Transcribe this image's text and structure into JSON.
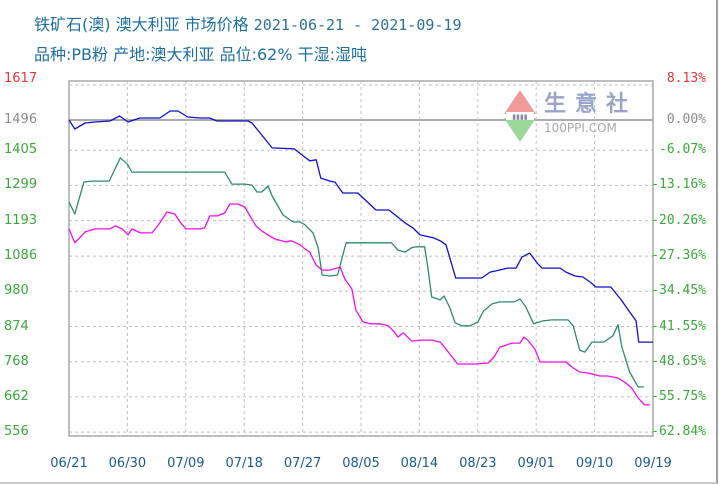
{
  "header": {
    "title_cn": "铁矿石(澳) 澳大利亚 市场价格",
    "date_range": "2021-06-21 - 2021-09-19",
    "subtitle": "品种:PB粉 产地:澳大利亚 品位:62% 干湿:湿吨"
  },
  "watermark": {
    "name": "生意社",
    "url": "100PPI.COM",
    "icon": "diamond-logo-icon"
  },
  "colors": {
    "title": "#1d6fa0",
    "left_top_tick": "#e8363b",
    "left_base_tick": "#8c8c8c",
    "left_other_ticks": "#3aa83a",
    "series_blue": "#1010c8",
    "series_green": "#2e8b6a",
    "series_magenta": "#ee10ee",
    "grid": "#c0c0c0",
    "base_line": "#909090",
    "x_ticks": "#1c5a8c"
  },
  "chart_data": {
    "type": "line",
    "title": "铁矿石(澳) 澳大利亚 市场价格 2021-06-21 - 2021-09-19",
    "subtitle": "品种:PB粉 产地:澳大利亚 品位:62% 干湿:湿吨",
    "xlabel": "",
    "ylabel": "",
    "x_ticks": [
      "06/21",
      "06/30",
      "07/09",
      "07/18",
      "07/27",
      "08/05",
      "08/14",
      "08/23",
      "09/01",
      "09/10",
      "09/19"
    ],
    "x_range_days": [
      0,
      90
    ],
    "y_left_ticks": [
      "1617",
      "1496",
      "1405",
      "1299",
      "1193",
      "1086",
      "980",
      "874",
      "768",
      "662",
      "556"
    ],
    "y_right_ticks": [
      "8.13%",
      "0.00%",
      "-6.07%",
      "-13.16%",
      "-20.26%",
      "-27.36%",
      "-34.45%",
      "-41.55%",
      "-48.65%",
      "-55.75%",
      "-62.84%"
    ],
    "ylim": [
      556,
      1617
    ],
    "base_value": 1496,
    "grid": true,
    "legend": "none",
    "series": [
      {
        "name": "blue",
        "color": "#1010c8",
        "points": [
          [
            0,
            1496
          ],
          [
            0.9,
            1469
          ],
          [
            2.5,
            1487
          ],
          [
            4,
            1490
          ],
          [
            6.3,
            1493
          ],
          [
            7.8,
            1508
          ],
          [
            9.1,
            1490
          ],
          [
            10.9,
            1502
          ],
          [
            14,
            1502
          ],
          [
            15.6,
            1523
          ],
          [
            16.8,
            1523
          ],
          [
            18.3,
            1505
          ],
          [
            20.2,
            1502
          ],
          [
            21.7,
            1502
          ],
          [
            22.8,
            1493
          ],
          [
            24,
            1493
          ],
          [
            25.6,
            1493
          ],
          [
            27.6,
            1493
          ],
          [
            28.2,
            1487
          ],
          [
            29.7,
            1451
          ],
          [
            31.3,
            1412
          ],
          [
            34.7,
            1409
          ],
          [
            36.1,
            1388
          ],
          [
            37.1,
            1373
          ],
          [
            38.1,
            1376
          ],
          [
            38.8,
            1321
          ],
          [
            40.2,
            1312
          ],
          [
            41,
            1309
          ],
          [
            42.2,
            1276
          ],
          [
            43.3,
            1276
          ],
          [
            44.5,
            1276
          ],
          [
            46,
            1249
          ],
          [
            47.3,
            1225
          ],
          [
            49.3,
            1225
          ],
          [
            51.8,
            1186
          ],
          [
            53,
            1171
          ],
          [
            54.1,
            1150
          ],
          [
            56.2,
            1141
          ],
          [
            57.2,
            1132
          ],
          [
            58.1,
            1120
          ],
          [
            59.6,
            1020
          ],
          [
            63.6,
            1020
          ],
          [
            64.9,
            1038
          ],
          [
            66.3,
            1044
          ],
          [
            67.6,
            1050
          ],
          [
            68.9,
            1050
          ],
          [
            69.8,
            1083
          ],
          [
            71,
            1095
          ],
          [
            72.3,
            1062
          ],
          [
            72.9,
            1050
          ],
          [
            75.7,
            1050
          ],
          [
            76.6,
            1038
          ],
          [
            78,
            1026
          ],
          [
            79.2,
            1023
          ],
          [
            80.3,
            1008
          ],
          [
            81.2,
            993
          ],
          [
            83.5,
            993
          ],
          [
            85.1,
            954
          ],
          [
            86.4,
            918
          ],
          [
            87.4,
            891
          ],
          [
            87.8,
            827
          ],
          [
            90,
            827
          ]
        ]
      },
      {
        "name": "green",
        "color": "#2e8b6a",
        "points": [
          [
            0,
            1249
          ],
          [
            0.9,
            1213
          ],
          [
            2.3,
            1309
          ],
          [
            3.4,
            1312
          ],
          [
            4.5,
            1312
          ],
          [
            6.2,
            1312
          ],
          [
            7.9,
            1382
          ],
          [
            9,
            1363
          ],
          [
            9.7,
            1339
          ],
          [
            11,
            1339
          ],
          [
            14,
            1339
          ],
          [
            17.1,
            1339
          ],
          [
            20.2,
            1339
          ],
          [
            23,
            1339
          ],
          [
            24,
            1339
          ],
          [
            25.1,
            1303
          ],
          [
            27.1,
            1303
          ],
          [
            28.2,
            1300
          ],
          [
            28.97,
            1279
          ],
          [
            29.7,
            1279
          ],
          [
            30.7,
            1297
          ],
          [
            31.3,
            1267
          ],
          [
            33,
            1210
          ],
          [
            34.5,
            1189
          ],
          [
            35.6,
            1189
          ],
          [
            36.4,
            1180
          ],
          [
            37.6,
            1156
          ],
          [
            38.4,
            1111
          ],
          [
            39,
            1029
          ],
          [
            40.2,
            1026
          ],
          [
            41.4,
            1029
          ],
          [
            42.7,
            1126
          ],
          [
            44.8,
            1126
          ],
          [
            47.6,
            1126
          ],
          [
            49.7,
            1126
          ],
          [
            50.7,
            1104
          ],
          [
            51.8,
            1098
          ],
          [
            52.8,
            1111
          ],
          [
            53.5,
            1114
          ],
          [
            54.8,
            1114
          ],
          [
            55.3,
            1053
          ],
          [
            55.9,
            963
          ],
          [
            57.2,
            954
          ],
          [
            57.8,
            966
          ],
          [
            58.7,
            930
          ],
          [
            59.5,
            885
          ],
          [
            60.6,
            876
          ],
          [
            61.8,
            876
          ],
          [
            63,
            888
          ],
          [
            63.9,
            921
          ],
          [
            65.2,
            942
          ],
          [
            66.4,
            948
          ],
          [
            68.6,
            948
          ],
          [
            69.5,
            957
          ],
          [
            70.4,
            933
          ],
          [
            71.6,
            882
          ],
          [
            73,
            891
          ],
          [
            74.4,
            894
          ],
          [
            76.9,
            894
          ],
          [
            77.7,
            876
          ],
          [
            78.7,
            803
          ],
          [
            79.5,
            797
          ],
          [
            80.6,
            827
          ],
          [
            82.4,
            827
          ],
          [
            83.8,
            846
          ],
          [
            84.6,
            879
          ],
          [
            85.2,
            812
          ],
          [
            86.4,
            737
          ],
          [
            87.7,
            692
          ],
          [
            88.6,
            692
          ]
        ]
      },
      {
        "name": "magenta",
        "color": "#ee10ee",
        "points": [
          [
            0,
            1168
          ],
          [
            0.9,
            1126
          ],
          [
            2.5,
            1159
          ],
          [
            4,
            1168
          ],
          [
            6.3,
            1168
          ],
          [
            7.1,
            1177
          ],
          [
            8.2,
            1168
          ],
          [
            9.1,
            1150
          ],
          [
            9.7,
            1168
          ],
          [
            11,
            1156
          ],
          [
            12.8,
            1156
          ],
          [
            14,
            1186
          ],
          [
            15.1,
            1219
          ],
          [
            16.3,
            1213
          ],
          [
            17.1,
            1189
          ],
          [
            18,
            1168
          ],
          [
            20.2,
            1168
          ],
          [
            20.9,
            1171
          ],
          [
            21.7,
            1207
          ],
          [
            22.9,
            1207
          ],
          [
            24,
            1216
          ],
          [
            24.8,
            1243
          ],
          [
            26,
            1243
          ],
          [
            27.1,
            1234
          ],
          [
            28.8,
            1177
          ],
          [
            29.7,
            1162
          ],
          [
            31.7,
            1138
          ],
          [
            33.3,
            1129
          ],
          [
            34.3,
            1132
          ],
          [
            35.6,
            1120
          ],
          [
            36.4,
            1107
          ],
          [
            37.1,
            1098
          ],
          [
            38.1,
            1059
          ],
          [
            39,
            1044
          ],
          [
            40.2,
            1044
          ],
          [
            41.8,
            1053
          ],
          [
            42.5,
            1017
          ],
          [
            43.6,
            987
          ],
          [
            44.2,
            924
          ],
          [
            45.3,
            888
          ],
          [
            46.4,
            882
          ],
          [
            47.9,
            882
          ],
          [
            49.2,
            876
          ],
          [
            50.1,
            858
          ],
          [
            50.7,
            842
          ],
          [
            51.5,
            855
          ],
          [
            52.8,
            830
          ],
          [
            54.4,
            833
          ],
          [
            55.9,
            833
          ],
          [
            57.2,
            827
          ],
          [
            58.1,
            806
          ],
          [
            59.9,
            761
          ],
          [
            62.7,
            761
          ],
          [
            64.6,
            764
          ],
          [
            65.5,
            782
          ],
          [
            66.4,
            812
          ],
          [
            68.3,
            824
          ],
          [
            69.5,
            824
          ],
          [
            70.1,
            842
          ],
          [
            70.7,
            833
          ],
          [
            71.8,
            806
          ],
          [
            72.6,
            767
          ],
          [
            76.6,
            767
          ],
          [
            77.5,
            752
          ],
          [
            78.7,
            737
          ],
          [
            80,
            734
          ],
          [
            81.8,
            725
          ],
          [
            83,
            725
          ],
          [
            84.6,
            719
          ],
          [
            85.8,
            704
          ],
          [
            86.7,
            689
          ],
          [
            87.7,
            659
          ],
          [
            88.7,
            638
          ],
          [
            89.5,
            638
          ]
        ]
      }
    ]
  }
}
